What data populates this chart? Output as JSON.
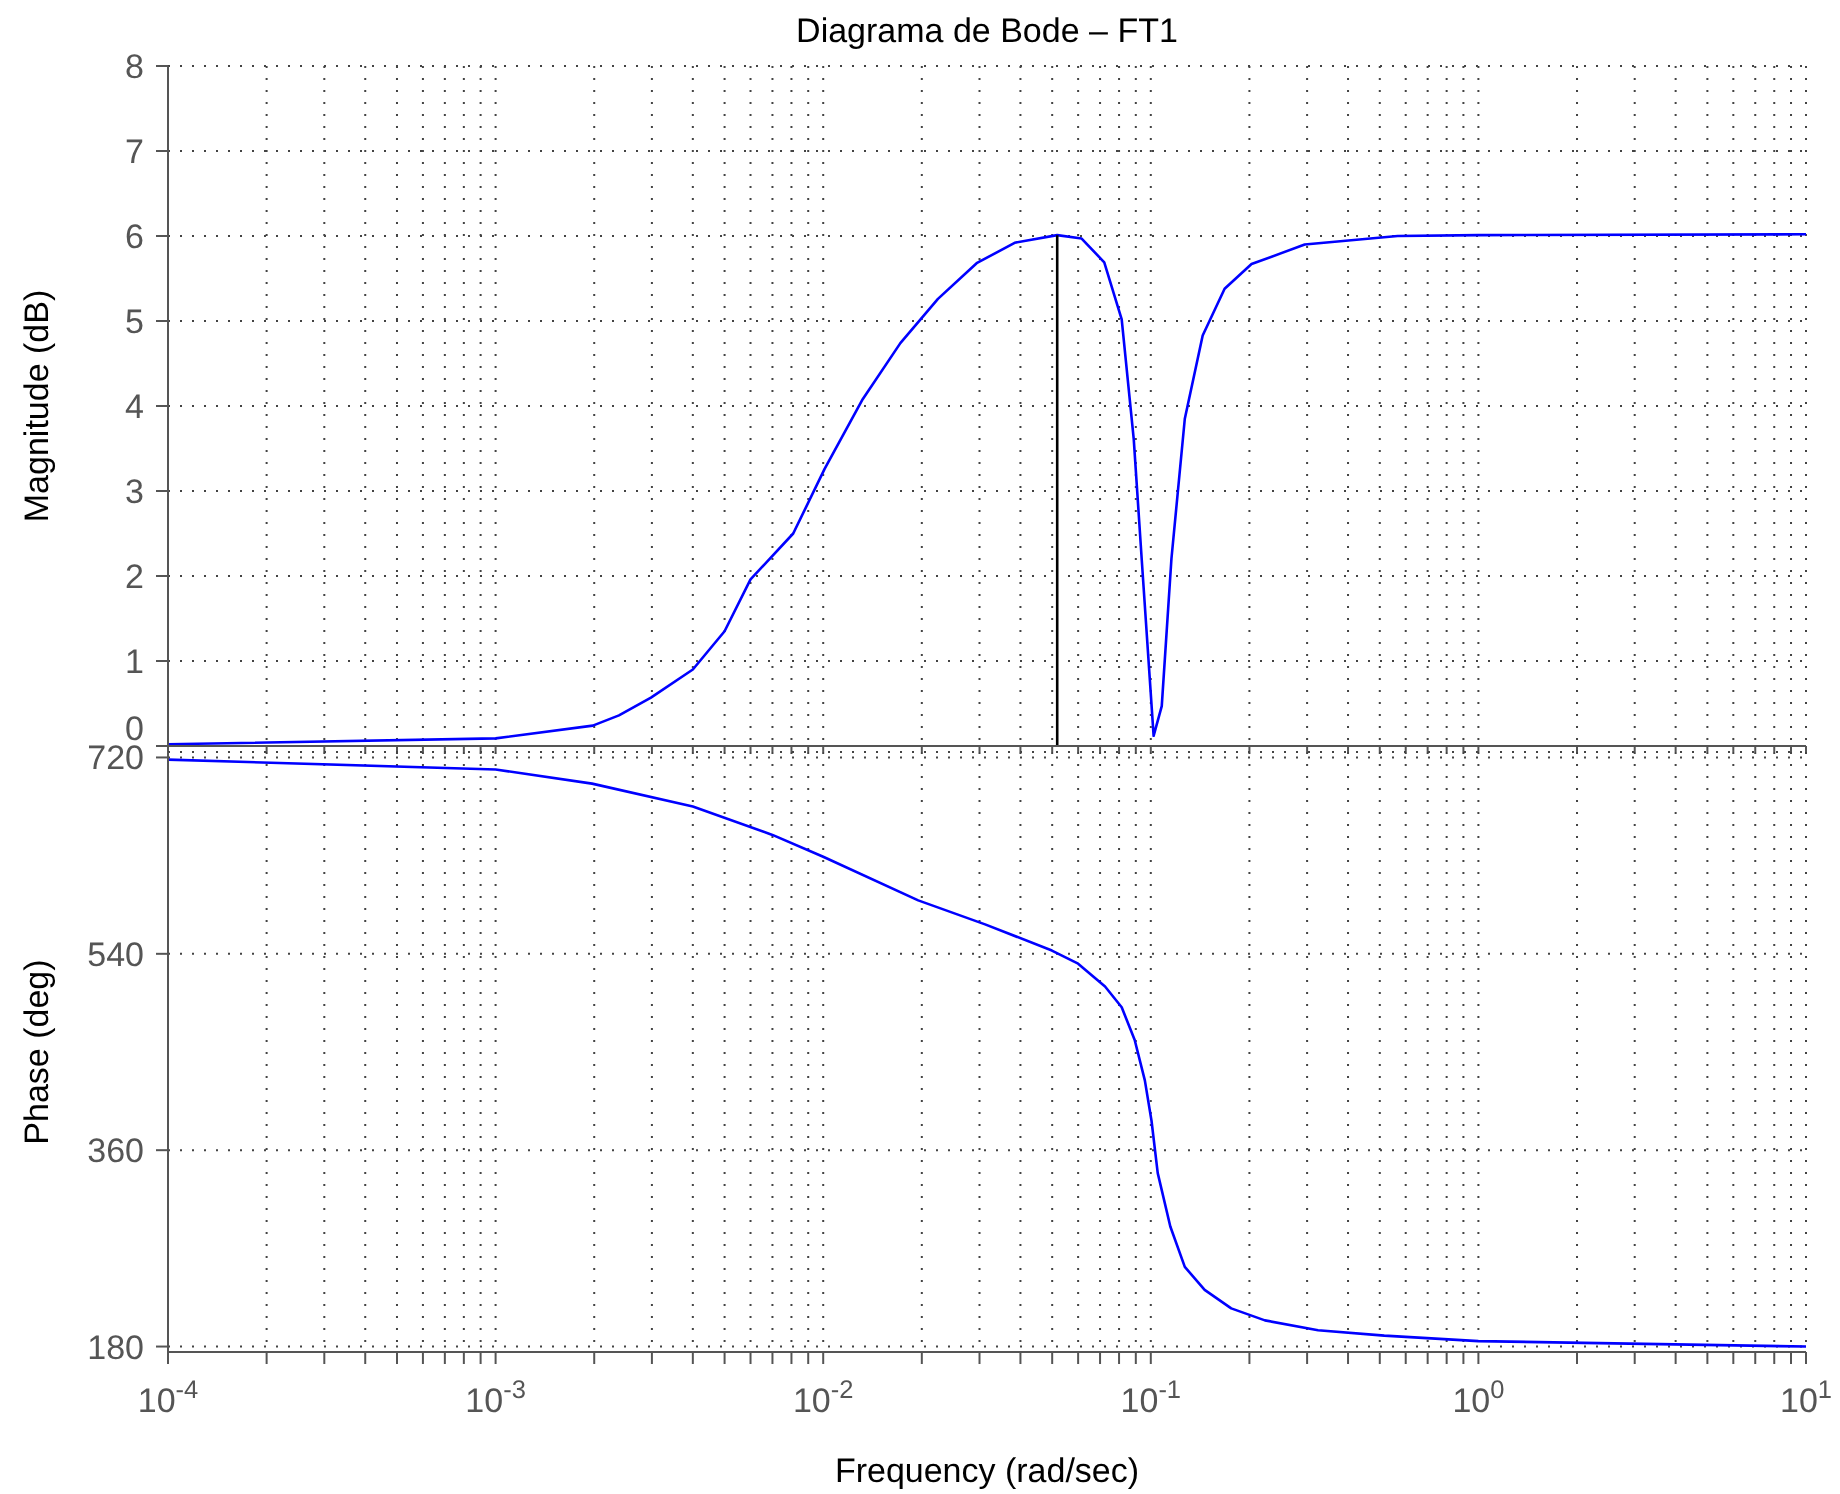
{
  "chart_data": [
    {
      "type": "line",
      "title": "Diagrama de Bode – FT1",
      "ylabel": "Magnitude (dB)",
      "log": "x",
      "grid": true,
      "tick_labels": "y",
      "xlim": [
        0.0001,
        10
      ],
      "ylim": [
        0,
        8
      ],
      "yticks": [
        0,
        1,
        2,
        3,
        4,
        5,
        6,
        7,
        8
      ],
      "xticks": [
        {
          "value": 0.0001,
          "label": null
        },
        {
          "value": 0.0002,
          "label": null
        },
        {
          "value": 0.0003,
          "label": null
        },
        {
          "value": 0.0004,
          "label": null
        },
        {
          "value": 0.0005,
          "label": null
        },
        {
          "value": 0.0006,
          "label": null
        },
        {
          "value": 0.0007,
          "label": null
        },
        {
          "value": 0.0008,
          "label": null
        },
        {
          "value": 0.0009,
          "label": null
        },
        {
          "value": 0.001,
          "label": null
        },
        {
          "value": 0.002,
          "label": null
        },
        {
          "value": 0.003,
          "label": null
        },
        {
          "value": 0.004,
          "label": null
        },
        {
          "value": 0.005,
          "label": null
        },
        {
          "value": 0.006,
          "label": null
        },
        {
          "value": 0.007,
          "label": null
        },
        {
          "value": 0.008,
          "label": null
        },
        {
          "value": 0.009,
          "label": null
        },
        {
          "value": 0.01,
          "label": null
        },
        {
          "value": 0.02,
          "label": null
        },
        {
          "value": 0.03,
          "label": null
        },
        {
          "value": 0.04,
          "label": null
        },
        {
          "value": 0.05,
          "label": null
        },
        {
          "value": 0.06,
          "label": null
        },
        {
          "value": 0.07,
          "label": null
        },
        {
          "value": 0.08,
          "label": null
        },
        {
          "value": 0.09,
          "label": null
        },
        {
          "value": 0.1,
          "label": null
        },
        {
          "value": 0.2,
          "label": null
        },
        {
          "value": 0.3,
          "label": null
        },
        {
          "value": 0.4,
          "label": null
        },
        {
          "value": 0.5,
          "label": null
        },
        {
          "value": 0.6,
          "label": null
        },
        {
          "value": 0.7,
          "label": null
        },
        {
          "value": 0.8,
          "label": null
        },
        {
          "value": 0.9,
          "label": null
        },
        {
          "value": 1,
          "label": null
        },
        {
          "value": 2,
          "label": null
        },
        {
          "value": 3,
          "label": null
        },
        {
          "value": 4,
          "label": null
        },
        {
          "value": 5,
          "label": null
        },
        {
          "value": 6,
          "label": null
        },
        {
          "value": 7,
          "label": null
        },
        {
          "value": 8,
          "label": null
        },
        {
          "value": 9,
          "label": null
        },
        {
          "value": 10,
          "label": null
        }
      ],
      "series": [
        {
          "color": "#0000ff",
          "x": [
            0.0001,
            0.001,
            0.00198,
            0.00238,
            0.00298,
            0.004,
            0.005,
            0.006,
            0.0081,
            0.0101,
            0.0132,
            0.0172,
            0.0224,
            0.0294,
            0.0384,
            0.0518,
            0.0615,
            0.0721,
            0.0815,
            0.0887,
            0.0938,
            0.102,
            0.108,
            0.1156,
            0.127,
            0.144,
            0.168,
            0.203,
            0.295,
            0.567,
            1,
            10
          ],
          "values": [
            0.02,
            0.09,
            0.24,
            0.36,
            0.57,
            0.9,
            1.35,
            1.96,
            2.5,
            3.26,
            4.08,
            4.74,
            5.26,
            5.68,
            5.92,
            6.01,
            5.97,
            5.69,
            5.02,
            3.61,
            2.2,
            0.12,
            0.47,
            2.2,
            3.85,
            4.83,
            5.38,
            5.67,
            5.9,
            6.0,
            6.01,
            6.02
          ]
        },
        {
          "color": "#000000",
          "x": [
            0.0518,
            0.0518
          ],
          "values": [
            0,
            6.01
          ]
        }
      ]
    },
    {
      "type": "line",
      "xlabel": "Frequency  (rad/sec)",
      "ylabel": "Phase (deg)",
      "log": "x",
      "grid": true,
      "xlim": [
        0.0001,
        10
      ],
      "ylim": [
        175,
        725
      ],
      "yticks": [
        180,
        360,
        540,
        720
      ],
      "xticks": [
        {
          "value": 0.0001,
          "label": "10$^{-4}$"
        },
        {
          "value": 0.0002,
          "label": null
        },
        {
          "value": 0.0003,
          "label": null
        },
        {
          "value": 0.0004,
          "label": null
        },
        {
          "value": 0.0005,
          "label": null
        },
        {
          "value": 0.0006,
          "label": null
        },
        {
          "value": 0.0007,
          "label": null
        },
        {
          "value": 0.0008,
          "label": null
        },
        {
          "value": 0.0009,
          "label": null
        },
        {
          "value": 0.001,
          "label": "10$^{-3}$"
        },
        {
          "value": 0.002,
          "label": null
        },
        {
          "value": 0.003,
          "label": null
        },
        {
          "value": 0.004,
          "label": null
        },
        {
          "value": 0.005,
          "label": null
        },
        {
          "value": 0.006,
          "label": null
        },
        {
          "value": 0.007,
          "label": null
        },
        {
          "value": 0.008,
          "label": null
        },
        {
          "value": 0.009,
          "label": null
        },
        {
          "value": 0.01,
          "label": "10$^{-2}$"
        },
        {
          "value": 0.02,
          "label": null
        },
        {
          "value": 0.03,
          "label": null
        },
        {
          "value": 0.04,
          "label": null
        },
        {
          "value": 0.05,
          "label": null
        },
        {
          "value": 0.06,
          "label": null
        },
        {
          "value": 0.07,
          "label": null
        },
        {
          "value": 0.08,
          "label": null
        },
        {
          "value": 0.09,
          "label": null
        },
        {
          "value": 0.1,
          "label": "10$^{-1}$"
        },
        {
          "value": 0.2,
          "label": null
        },
        {
          "value": 0.3,
          "label": null
        },
        {
          "value": 0.4,
          "label": null
        },
        {
          "value": 0.5,
          "label": null
        },
        {
          "value": 0.6,
          "label": null
        },
        {
          "value": 0.7,
          "label": null
        },
        {
          "value": 0.8,
          "label": null
        },
        {
          "value": 0.9,
          "label": null
        },
        {
          "value": 1,
          "label": "10$^{0}$"
        },
        {
          "value": 2,
          "label": null
        },
        {
          "value": 3,
          "label": null
        },
        {
          "value": 4,
          "label": null
        },
        {
          "value": 5,
          "label": null
        },
        {
          "value": 6,
          "label": null
        },
        {
          "value": 7,
          "label": null
        },
        {
          "value": 8,
          "label": null
        },
        {
          "value": 9,
          "label": null
        },
        {
          "value": 10,
          "label": "10$^{1}$"
        }
      ],
      "series": [
        {
          "color": "#0000ff",
          "x": [
            0.0001,
            0.001,
            0.00197,
            0.004,
            0.007,
            0.01,
            0.0195,
            0.0312,
            0.0499,
            0.06,
            0.0725,
            0.0815,
            0.0893,
            0.0959,
            0.1005,
            0.105,
            0.1147,
            0.127,
            0.146,
            0.176,
            0.223,
            0.324,
            0.516,
            1,
            10
          ],
          "values": [
            718,
            709,
            696,
            675,
            649,
            629,
            589,
            567,
            543,
            531,
            510,
            491,
            461,
            424,
            387,
            339,
            290,
            253,
            232,
            215,
            204,
            195,
            190,
            185,
            180
          ]
        }
      ]
    }
  ]
}
